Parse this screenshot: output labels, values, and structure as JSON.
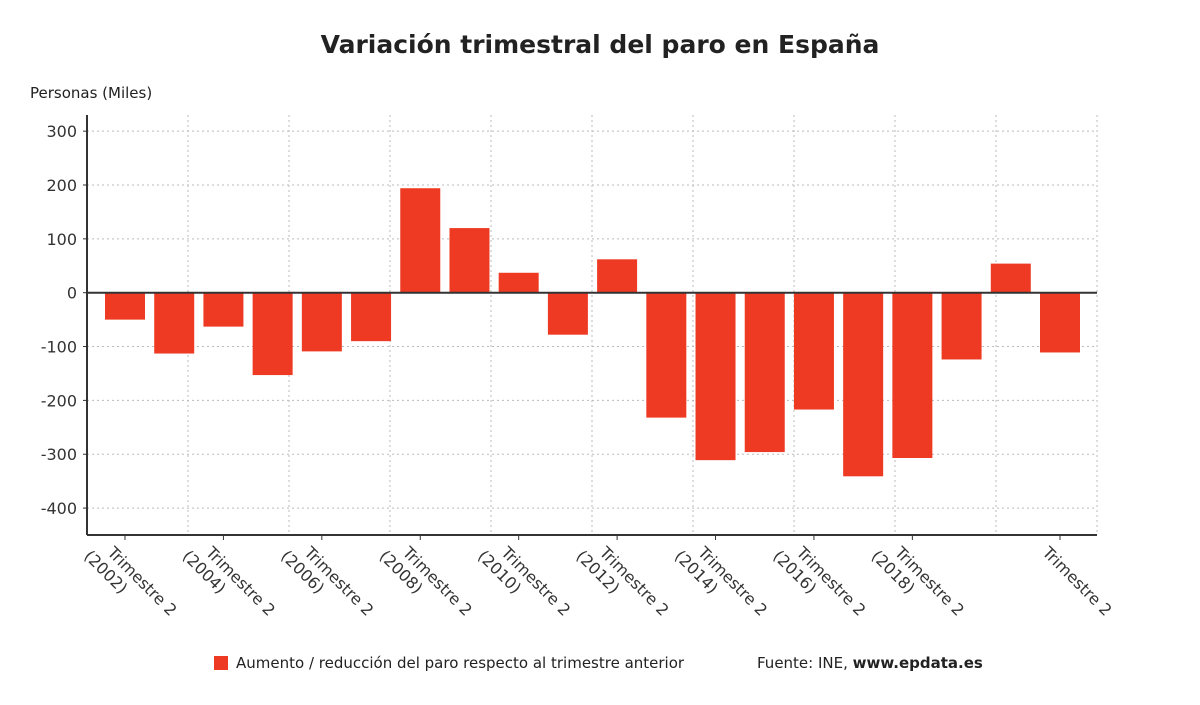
{
  "chart_data": {
    "type": "bar",
    "title": "Variación trimestral del paro en España",
    "ylabel": "Personas (Miles)",
    "xlabel": "",
    "ylim": [
      -450,
      330
    ],
    "yticks": [
      300,
      200,
      100,
      0,
      -100,
      -200,
      -300,
      -400
    ],
    "grid": true,
    "legend_position": "bottom",
    "bar_color": "#EE3A22",
    "categories": [
      "Trimestre 2 (2002)",
      "",
      "Trimestre 2 (2004)",
      "",
      "Trimestre 2 (2006)",
      "",
      "Trimestre 2 (2008)",
      "",
      "Trimestre 2 (2010)",
      "",
      "Trimestre 2 (2012)",
      "",
      "Trimestre 2 (2014)",
      "",
      "Trimestre 2 (2016)",
      "",
      "Trimestre 2 (2018)",
      "",
      "",
      "Trimestre 2"
    ],
    "series": [
      {
        "name": "Aumento / reducción del paro respecto al trimestre anterior",
        "values": [
          -50,
          -113,
          -63,
          -153,
          -109,
          -90,
          194,
          120,
          37,
          -78,
          62,
          -232,
          -311,
          -296,
          -217,
          -341,
          -307,
          -124,
          54,
          -111
        ]
      }
    ]
  },
  "source": {
    "prefix": "Fuente: INE, ",
    "site": "www.epdata.es"
  }
}
